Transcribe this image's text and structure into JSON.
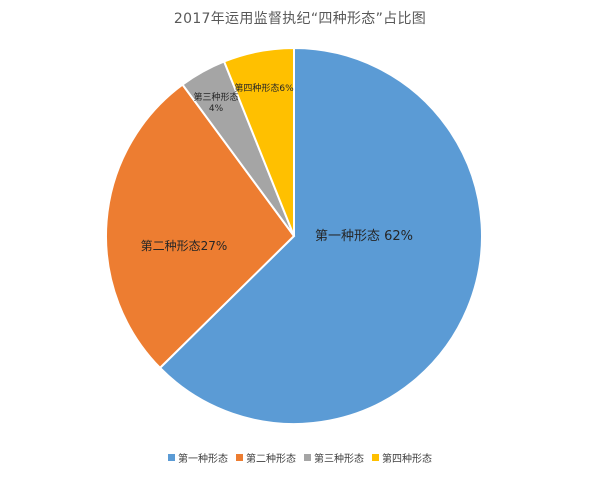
{
  "chart_data": {
    "type": "pie",
    "title": "2017年运用监督执纪“四种形态”占比图",
    "categories": [
      "第一种形态",
      "第二种形态",
      "第三种形态",
      "第四种形态"
    ],
    "values": [
      62,
      27,
      4,
      6
    ],
    "data_labels": [
      "第一种形态 62%",
      "第二种形态27%",
      "第三种形态 4%",
      "第四种形态6%"
    ],
    "colors": [
      "#5B9BD5",
      "#ED7D31",
      "#A5A5A5",
      "#FFC000"
    ],
    "legend": "bottom",
    "start_angle": "12 o'clock",
    "direction": "clockwise"
  }
}
